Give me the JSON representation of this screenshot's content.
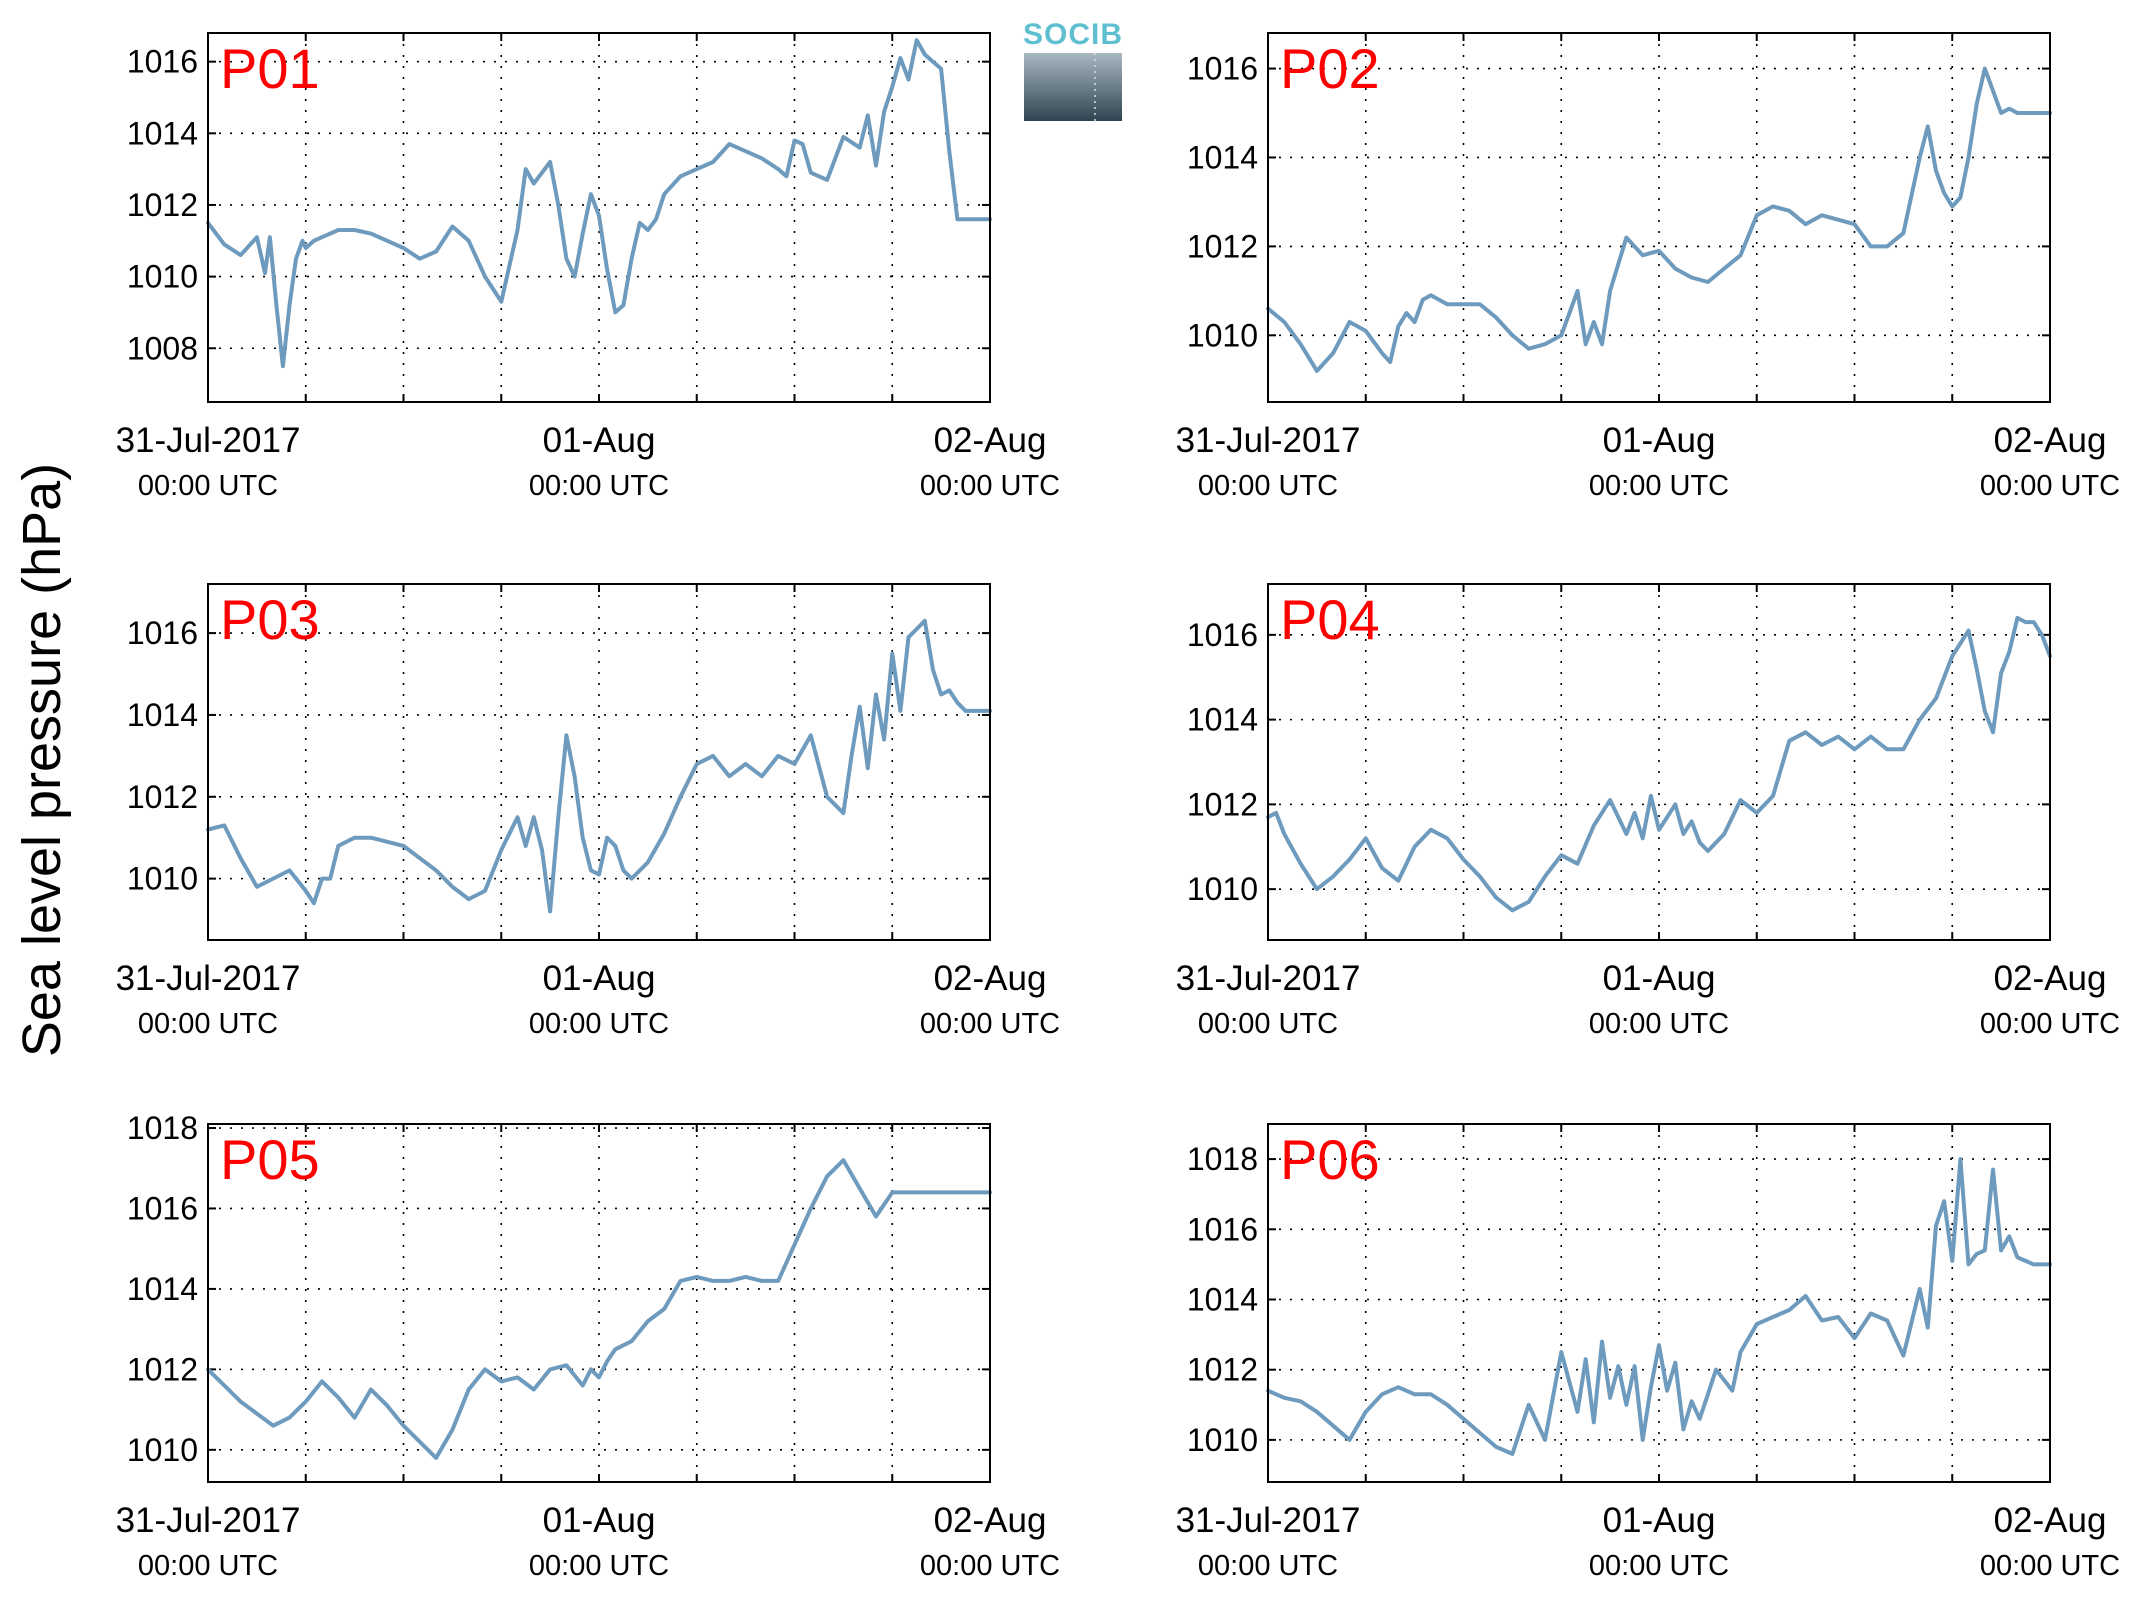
{
  "figure": {
    "ylabel": "Sea level pressure (hPa)",
    "line_color": "#6e9bbd",
    "label_color": "#ff0000",
    "logo": {
      "text": "SOCIB",
      "text_color": "#5fbfd0",
      "gradient_top": "#a9b8c2",
      "gradient_bottom": "#2e4450"
    }
  },
  "chart_data": [
    {
      "type": "line",
      "label": "P01",
      "x_ticks": [
        {
          "date": "31-Jul-2017",
          "time": "00:00 UTC"
        },
        {
          "date": "01-Aug",
          "time": "00:00 UTC"
        },
        {
          "date": "02-Aug",
          "time": "00:00 UTC"
        }
      ],
      "xlim": [
        0,
        48
      ],
      "ylim": [
        1006.5,
        1016.8
      ],
      "y_ticks": [
        1008,
        1010,
        1012,
        1014,
        1016
      ],
      "grid": true,
      "series": [
        {
          "x": [
            0,
            1,
            2,
            3,
            3.5,
            3.8,
            4.2,
            4.6,
            5,
            5.4,
            5.8,
            6,
            6.5,
            7,
            8,
            9,
            10,
            11,
            12,
            13,
            14,
            15,
            16,
            17,
            18,
            19,
            19.5,
            20,
            20.5,
            21,
            21.5,
            22,
            22.5,
            23,
            23.5,
            24,
            24.5,
            25,
            25.5,
            26,
            26.5,
            27,
            27.5,
            28,
            29,
            30,
            31,
            32,
            33,
            34,
            35,
            35.5,
            36,
            36.5,
            37,
            38,
            39,
            40,
            40.5,
            41,
            41.5,
            42,
            42.5,
            43,
            43.5,
            44,
            44.5,
            45,
            45.5,
            46,
            46.5,
            47,
            47.5,
            48
          ],
          "y": [
            1011.5,
            1010.9,
            1010.6,
            1011.1,
            1010.1,
            1011.1,
            1009.2,
            1007.5,
            1009.2,
            1010.5,
            1011,
            1010.8,
            1011,
            1011.1,
            1011.3,
            1011.3,
            1011.2,
            1011,
            1010.8,
            1010.5,
            1010.7,
            1011.4,
            1011,
            1010,
            1009.3,
            1011.3,
            1013,
            1012.6,
            1012.9,
            1013.2,
            1012,
            1010.5,
            1010,
            1011.2,
            1012.3,
            1011.7,
            1010.2,
            1009,
            1009.2,
            1010.5,
            1011.5,
            1011.3,
            1011.6,
            1012.3,
            1012.8,
            1013,
            1013.2,
            1013.7,
            1013.5,
            1013.3,
            1013,
            1012.8,
            1013.8,
            1013.7,
            1012.9,
            1012.7,
            1013.9,
            1013.6,
            1014.5,
            1013.1,
            1014.6,
            1015.3,
            1016.1,
            1015.5,
            1016.6,
            1016.2,
            1016,
            1015.8,
            1013.5,
            1011.6,
            1011.6,
            1011.6,
            1011.6,
            1011.6
          ]
        }
      ]
    },
    {
      "type": "line",
      "label": "P02",
      "x_ticks": [
        {
          "date": "31-Jul-2017",
          "time": "00:00 UTC"
        },
        {
          "date": "01-Aug",
          "time": "00:00 UTC"
        },
        {
          "date": "02-Aug",
          "time": "00:00 UTC"
        }
      ],
      "xlim": [
        0,
        48
      ],
      "ylim": [
        1008.5,
        1016.8
      ],
      "y_ticks": [
        1010,
        1012,
        1014,
        1016
      ],
      "grid": true,
      "series": [
        {
          "x": [
            0,
            1,
            2,
            3,
            4,
            5,
            6,
            7,
            7.5,
            8,
            8.5,
            9,
            9.5,
            10,
            11,
            12,
            13,
            14,
            15,
            16,
            17,
            18,
            19,
            19.5,
            20,
            20.5,
            21,
            22,
            23,
            24,
            25,
            26,
            27,
            28,
            29,
            30,
            31,
            32,
            33,
            34,
            35,
            36,
            37,
            38,
            39,
            40,
            40.5,
            41,
            41.5,
            42,
            42.5,
            43,
            43.5,
            44,
            44.5,
            45,
            45.5,
            46,
            46.5,
            47,
            47.5,
            48
          ],
          "y": [
            1010.6,
            1010.3,
            1009.8,
            1009.2,
            1009.6,
            1010.3,
            1010.1,
            1009.6,
            1009.4,
            1010.2,
            1010.5,
            1010.3,
            1010.8,
            1010.9,
            1010.7,
            1010.7,
            1010.7,
            1010.4,
            1010,
            1009.7,
            1009.8,
            1010,
            1011,
            1009.8,
            1010.3,
            1009.8,
            1011,
            1012.2,
            1011.8,
            1011.9,
            1011.5,
            1011.3,
            1011.2,
            1011.5,
            1011.8,
            1012.7,
            1012.9,
            1012.8,
            1012.5,
            1012.7,
            1012.6,
            1012.5,
            1012,
            1012,
            1012.3,
            1014,
            1014.7,
            1013.7,
            1013.2,
            1012.9,
            1013.1,
            1014,
            1015.2,
            1016,
            1015.5,
            1015,
            1015.1,
            1015,
            1015,
            1015,
            1015,
            1015
          ]
        }
      ]
    },
    {
      "type": "line",
      "label": "P03",
      "x_ticks": [
        {
          "date": "31-Jul-2017",
          "time": "00:00 UTC"
        },
        {
          "date": "01-Aug",
          "time": "00:00 UTC"
        },
        {
          "date": "02-Aug",
          "time": "00:00 UTC"
        }
      ],
      "xlim": [
        0,
        48
      ],
      "ylim": [
        1008.5,
        1017.2
      ],
      "y_ticks": [
        1010,
        1012,
        1014,
        1016
      ],
      "grid": true,
      "series": [
        {
          "x": [
            0,
            1,
            2,
            3,
            4,
            5,
            6,
            6.5,
            7,
            7.5,
            8,
            9,
            10,
            11,
            12,
            13,
            14,
            15,
            16,
            17,
            18,
            19,
            19.5,
            20,
            20.5,
            21,
            21.5,
            22,
            22.5,
            23,
            23.5,
            24,
            24.5,
            25,
            25.5,
            26,
            27,
            28,
            29,
            30,
            31,
            32,
            33,
            34,
            35,
            36,
            37,
            38,
            39,
            39.5,
            40,
            40.5,
            41,
            41.5,
            42,
            42.5,
            43,
            43.5,
            44,
            44.5,
            45,
            45.5,
            46,
            46.5,
            47,
            47.5,
            48
          ],
          "y": [
            1011.2,
            1011.3,
            1010.5,
            1009.8,
            1010,
            1010.2,
            1009.7,
            1009.4,
            1010,
            1010,
            1010.8,
            1011,
            1011,
            1010.9,
            1010.8,
            1010.5,
            1010.2,
            1009.8,
            1009.5,
            1009.7,
            1010.7,
            1011.5,
            1010.8,
            1011.5,
            1010.7,
            1009.2,
            1011.5,
            1013.5,
            1012.5,
            1011,
            1010.2,
            1010.1,
            1011,
            1010.8,
            1010.2,
            1010,
            1010.4,
            1011.1,
            1012,
            1012.8,
            1013,
            1012.5,
            1012.8,
            1012.5,
            1013,
            1012.8,
            1013.5,
            1012,
            1011.6,
            1013,
            1014.2,
            1012.7,
            1014.5,
            1013.4,
            1015.5,
            1014.1,
            1015.9,
            1016.1,
            1016.3,
            1015.1,
            1014.5,
            1014.6,
            1014.3,
            1014.1,
            1014.1,
            1014.1,
            1014.1
          ]
        }
      ]
    },
    {
      "type": "line",
      "label": "P04",
      "x_ticks": [
        {
          "date": "31-Jul-2017",
          "time": "00:00 UTC"
        },
        {
          "date": "01-Aug",
          "time": "00:00 UTC"
        },
        {
          "date": "02-Aug",
          "time": "00:00 UTC"
        }
      ],
      "xlim": [
        0,
        48
      ],
      "ylim": [
        1008.8,
        1017.2
      ],
      "y_ticks": [
        1010,
        1012,
        1014,
        1016
      ],
      "grid": true,
      "series": [
        {
          "x": [
            0,
            0.5,
            1,
            2,
            3,
            4,
            5,
            6,
            7,
            8,
            9,
            10,
            11,
            12,
            13,
            14,
            15,
            16,
            17,
            18,
            19,
            20,
            21,
            22,
            22.5,
            23,
            23.5,
            24,
            25,
            25.5,
            26,
            26.5,
            27,
            28,
            29,
            30,
            31,
            32,
            33,
            34,
            35,
            36,
            37,
            38,
            39,
            40,
            41,
            42,
            43,
            43.5,
            44,
            44.5,
            45,
            45.5,
            46,
            46.5,
            47,
            47.5,
            48
          ],
          "y": [
            1011.7,
            1011.8,
            1011.3,
            1010.6,
            1010,
            1010.3,
            1010.7,
            1011.2,
            1010.5,
            1010.2,
            1011,
            1011.4,
            1011.2,
            1010.7,
            1010.3,
            1009.8,
            1009.5,
            1009.7,
            1010.3,
            1010.8,
            1010.6,
            1011.5,
            1012.1,
            1011.3,
            1011.8,
            1011.2,
            1012.2,
            1011.4,
            1012,
            1011.3,
            1011.6,
            1011.1,
            1010.9,
            1011.3,
            1012.1,
            1011.8,
            1012.2,
            1013.5,
            1013.7,
            1013.4,
            1013.6,
            1013.3,
            1013.6,
            1013.3,
            1013.3,
            1014,
            1014.5,
            1015.5,
            1016.1,
            1015.2,
            1014.2,
            1013.7,
            1015.1,
            1015.6,
            1016.4,
            1016.3,
            1016.3,
            1016,
            1015.5
          ]
        }
      ]
    },
    {
      "type": "line",
      "label": "P05",
      "x_ticks": [
        {
          "date": "31-Jul-2017",
          "time": "00:00 UTC"
        },
        {
          "date": "01-Aug",
          "time": "00:00 UTC"
        },
        {
          "date": "02-Aug",
          "time": "00:00 UTC"
        }
      ],
      "xlim": [
        0,
        48
      ],
      "ylim": [
        1009.2,
        1018.1
      ],
      "y_ticks": [
        1010,
        1012,
        1014,
        1016,
        1018
      ],
      "grid": true,
      "series": [
        {
          "x": [
            0,
            1,
            2,
            3,
            4,
            5,
            6,
            7,
            8,
            9,
            10,
            11,
            12,
            13,
            14,
            15,
            16,
            17,
            18,
            19,
            20,
            21,
            22,
            23,
            23.5,
            24,
            24.5,
            25,
            26,
            27,
            28,
            29,
            30,
            31,
            32,
            33,
            34,
            35,
            36,
            37,
            38,
            39,
            40,
            41,
            42,
            43,
            43.5,
            44,
            44.5,
            45,
            45.5,
            46,
            46.5,
            47,
            47.5,
            48
          ],
          "y": [
            1012,
            1011.6,
            1011.2,
            1010.9,
            1010.6,
            1010.8,
            1011.2,
            1011.7,
            1011.3,
            1010.8,
            1011.5,
            1011.1,
            1010.6,
            1010.2,
            1009.8,
            1010.5,
            1011.5,
            1012,
            1011.7,
            1011.8,
            1011.5,
            1012,
            1012.1,
            1011.6,
            1012,
            1011.8,
            1012.2,
            1012.5,
            1012.7,
            1013.2,
            1013.5,
            1014.2,
            1014.3,
            1014.2,
            1014.2,
            1014.3,
            1014.2,
            1014.2,
            1015.1,
            1016,
            1016.8,
            1017.2,
            1016.5,
            1015.8,
            1016.4,
            1016.4,
            1016.4,
            1016.4,
            1016.4,
            1016.4,
            1016.4,
            1016.4,
            1016.4,
            1016.4,
            1016.4,
            1016.4
          ]
        }
      ]
    },
    {
      "type": "line",
      "label": "P06",
      "x_ticks": [
        {
          "date": "31-Jul-2017",
          "time": "00:00 UTC"
        },
        {
          "date": "01-Aug",
          "time": "00:00 UTC"
        },
        {
          "date": "02-Aug",
          "time": "00:00 UTC"
        }
      ],
      "xlim": [
        0,
        48
      ],
      "ylim": [
        1008.8,
        1019.0
      ],
      "y_ticks": [
        1010,
        1012,
        1014,
        1016,
        1018
      ],
      "grid": true,
      "series": [
        {
          "x": [
            0,
            1,
            2,
            3,
            4,
            5,
            6,
            7,
            8,
            9,
            10,
            11,
            12,
            13,
            14,
            15,
            16,
            17,
            18,
            19,
            19.5,
            20,
            20.5,
            21,
            21.5,
            22,
            22.5,
            23,
            23.5,
            24,
            24.5,
            25,
            25.5,
            26,
            26.5,
            27,
            27.5,
            28,
            28.5,
            29,
            30,
            31,
            32,
            33,
            34,
            35,
            36,
            37,
            38,
            39,
            40,
            40.5,
            41,
            41.5,
            42,
            42.5,
            43,
            43.5,
            44,
            44.5,
            45,
            45.5,
            46,
            46.5,
            47,
            47.5,
            48
          ],
          "y": [
            1011.4,
            1011.2,
            1011.1,
            1010.8,
            1010.4,
            1010,
            1010.8,
            1011.3,
            1011.5,
            1011.3,
            1011.3,
            1011,
            1010.6,
            1010.2,
            1009.8,
            1009.6,
            1011,
            1010,
            1012.5,
            1010.8,
            1012.3,
            1010.5,
            1012.8,
            1011.2,
            1012.1,
            1011,
            1012.1,
            1010,
            1011.5,
            1012.7,
            1011.4,
            1012.2,
            1010.3,
            1011.1,
            1010.6,
            1011.3,
            1012,
            1011.7,
            1011.4,
            1012.5,
            1013.3,
            1013.5,
            1013.7,
            1014.1,
            1013.4,
            1013.5,
            1012.9,
            1013.6,
            1013.4,
            1012.4,
            1014.3,
            1013.2,
            1016.1,
            1016.8,
            1015.1,
            1018,
            1015,
            1015.3,
            1015.4,
            1017.7,
            1015.4,
            1015.8,
            1015.2,
            1015.1,
            1015,
            1015,
            1015
          ]
        }
      ]
    }
  ]
}
